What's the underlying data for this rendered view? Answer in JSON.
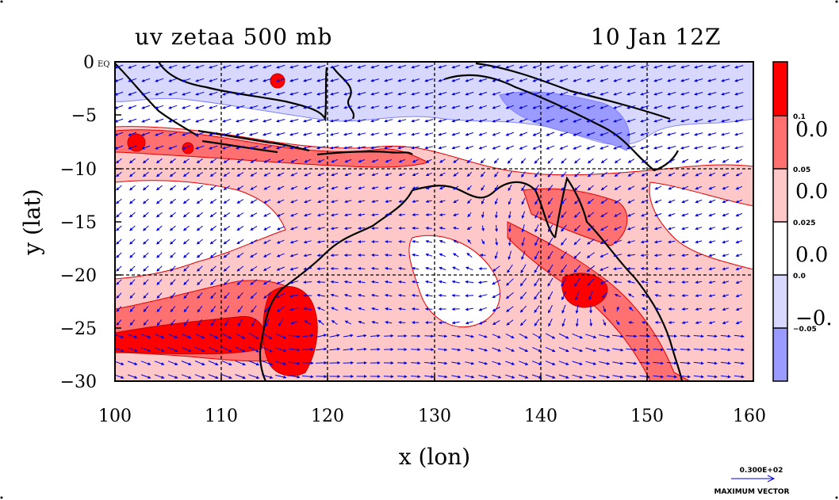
{
  "title_left": "uv zetaa 500 mb",
  "title_right": "10 Jan 12Z",
  "x_axis": {
    "label": "x (lon)",
    "ticks": [
      "100",
      "110",
      "120",
      "130",
      "140",
      "150",
      "160"
    ],
    "range": [
      100,
      160
    ]
  },
  "y_axis": {
    "label": "y (lat)",
    "ticks": [
      "0 EQ",
      "−5",
      "−10",
      "−15",
      "−20",
      "−25",
      "−30"
    ],
    "range": [
      -30,
      0
    ]
  },
  "colorbar": {
    "levels": [
      {
        "label": "0.1",
        "big": "0.0",
        "color": "#ff0000"
      },
      {
        "label": "0.05",
        "big": "0.0",
        "color": "#ff7070"
      },
      {
        "label": "0.025",
        "big": "0.0",
        "color": "#ffc8c8"
      },
      {
        "label": "0.0",
        "big": "−0.",
        "color": "#ffffff"
      },
      {
        "label": "−0.05",
        "big": "",
        "color": "#d8d8ff"
      }
    ],
    "bottom_color": "#9a9aff"
  },
  "vector_key": {
    "magnitude": "0.300E+02",
    "caption": "MAXIMUM VECTOR"
  },
  "colors": {
    "strong_pos": "#ff0000",
    "mid_pos": "#ff7070",
    "weak_pos": "#ffc8c8",
    "neutral": "#ffffff",
    "weak_neg": "#d8d8ff",
    "strong_neg": "#9a9aff",
    "contour": "#e00000",
    "neg_contour": "#8080ff",
    "vectors": "#0000e0",
    "coast": "#000000"
  }
}
